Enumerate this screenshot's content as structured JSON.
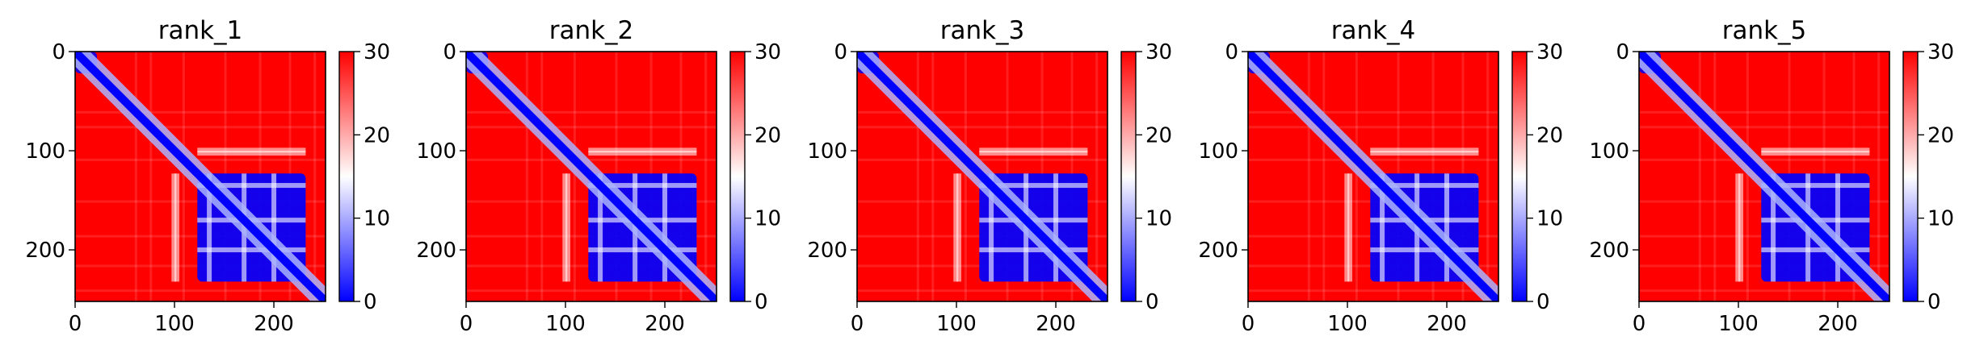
{
  "chart_data": [
    {
      "type": "heatmap",
      "title": "rank_1",
      "xlim": [
        0,
        252
      ],
      "ylim": [
        252,
        0
      ],
      "xticks": [
        0,
        100,
        200
      ],
      "yticks": [
        0,
        100,
        200
      ],
      "colorbar": {
        "min": 0,
        "max": 30,
        "ticks": [
          0,
          10,
          20,
          30
        ],
        "colormap": "bwr"
      },
      "domains": [
        {
          "start": 0,
          "end": 22
        },
        {
          "start": 123,
          "end": 232
        }
      ],
      "gaps": [
        97,
        100,
        135,
        170,
        200
      ],
      "grid": false
    },
    {
      "type": "heatmap",
      "title": "rank_2",
      "xlim": [
        0,
        252
      ],
      "ylim": [
        252,
        0
      ],
      "xticks": [
        0,
        100,
        200
      ],
      "yticks": [
        0,
        100,
        200
      ],
      "colorbar": {
        "min": 0,
        "max": 30,
        "ticks": [
          0,
          10,
          20,
          30
        ],
        "colormap": "bwr"
      },
      "domains": [
        {
          "start": 0,
          "end": 22
        },
        {
          "start": 123,
          "end": 232
        }
      ],
      "gaps": [
        97,
        100,
        135,
        170,
        200
      ],
      "grid": false
    },
    {
      "type": "heatmap",
      "title": "rank_3",
      "xlim": [
        0,
        252
      ],
      "ylim": [
        252,
        0
      ],
      "xticks": [
        0,
        100,
        200
      ],
      "yticks": [
        0,
        100,
        200
      ],
      "colorbar": {
        "min": 0,
        "max": 30,
        "ticks": [
          0,
          10,
          20,
          30
        ],
        "colormap": "bwr"
      },
      "domains": [
        {
          "start": 0,
          "end": 22
        },
        {
          "start": 123,
          "end": 232
        }
      ],
      "gaps": [
        97,
        100,
        135,
        170,
        200
      ],
      "grid": false
    },
    {
      "type": "heatmap",
      "title": "rank_4",
      "xlim": [
        0,
        252
      ],
      "ylim": [
        252,
        0
      ],
      "xticks": [
        0,
        100,
        200
      ],
      "yticks": [
        0,
        100,
        200
      ],
      "colorbar": {
        "min": 0,
        "max": 30,
        "ticks": [
          0,
          10,
          20,
          30
        ],
        "colormap": "bwr"
      },
      "domains": [
        {
          "start": 0,
          "end": 22
        },
        {
          "start": 123,
          "end": 232
        }
      ],
      "gaps": [
        97,
        100,
        135,
        170,
        200
      ],
      "grid": false
    },
    {
      "type": "heatmap",
      "title": "rank_5",
      "xlim": [
        0,
        252
      ],
      "ylim": [
        252,
        0
      ],
      "xticks": [
        0,
        100,
        200
      ],
      "yticks": [
        0,
        100,
        200
      ],
      "colorbar": {
        "min": 0,
        "max": 30,
        "ticks": [
          0,
          10,
          20,
          30
        ],
        "colormap": "bwr"
      },
      "domains": [
        {
          "start": 0,
          "end": 22
        },
        {
          "start": 123,
          "end": 232
        }
      ],
      "gaps": [
        97,
        100,
        135,
        170,
        200
      ],
      "grid": false
    }
  ],
  "colors": {
    "low": "#0000ff",
    "mid": "#ffffff",
    "high": "#ff0000"
  }
}
